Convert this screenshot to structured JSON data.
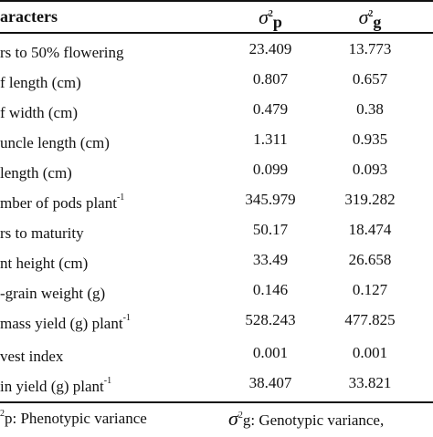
{
  "table": {
    "header": {
      "characters": "aracters",
      "sigma": "σ",
      "sq": "2",
      "p_sub": "p",
      "g_sub": "g"
    },
    "rows": [
      {
        "char": "rs to 50% flowering",
        "sup": "",
        "p": "23.409",
        "g": "13.773"
      },
      {
        "char": "f length (cm)",
        "sup": "",
        "p": "0.807",
        "g": "0.657"
      },
      {
        "char": "f width (cm)",
        "sup": "",
        "p": "0.479",
        "g": "0.38"
      },
      {
        "char": "uncle length (cm)",
        "sup": "",
        "p": "1.311",
        "g": "0.935"
      },
      {
        "char": "length (cm)",
        "sup": "",
        "p": "0.099",
        "g": "0.093"
      },
      {
        "char": "mber of pods plant",
        "sup": "-1",
        "p": "345.979",
        "g": "319.282"
      },
      {
        "char": "rs to maturity",
        "sup": "",
        "p": "50.17",
        "g": "18.474"
      },
      {
        "char": "nt height (cm)",
        "sup": "",
        "p": "33.49",
        "g": "26.658"
      },
      {
        "char": "-grain weight (g)",
        "sup": "",
        "p": "0.146",
        "g": "0.127"
      },
      {
        "char": "mass yield (g) plant",
        "sup": "-1",
        "p": "528.243",
        "g": "477.825"
      },
      {
        "char": "vest index",
        "sup": "",
        "p": "0.001",
        "g": "0.001"
      },
      {
        "char": "in yield (g) plant",
        "sup": "-1",
        "p": "38.407",
        "g": "33.821"
      }
    ]
  },
  "footnote": {
    "left_sup": "2",
    "left_text": "p: Phenotypic  variance",
    "sigma": "σ",
    "right_sup": "2",
    "right_text": "g: Genotypic variance,"
  }
}
